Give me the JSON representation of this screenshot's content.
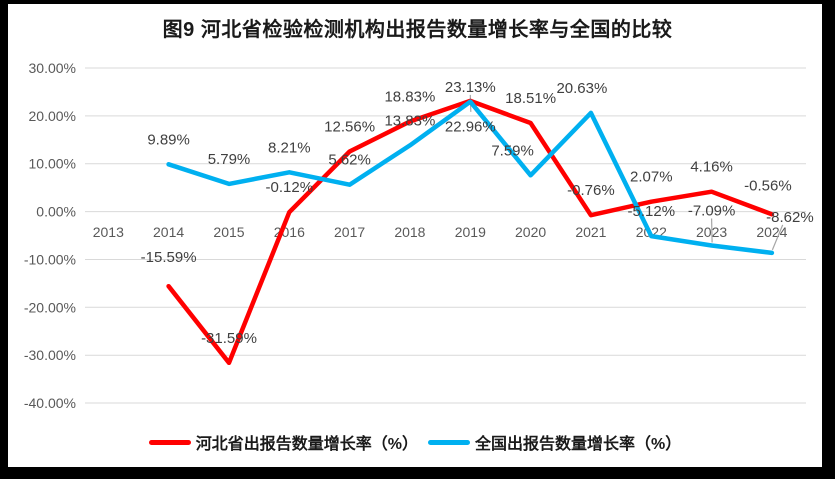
{
  "chart_data": {
    "type": "line",
    "title": "图9 河北省检验检测机构出报告数量增长率与全国的比较",
    "categories": [
      "2013",
      "2014",
      "2015",
      "2016",
      "2017",
      "2018",
      "2019",
      "2020",
      "2021",
      "2022",
      "2023",
      "2024"
    ],
    "series": [
      {
        "name": "河北省出报告数量增长率（%）",
        "color": "#FF0000",
        "values": [
          null,
          -15.59,
          -31.59,
          -0.12,
          12.56,
          18.83,
          23.13,
          18.51,
          -0.76,
          2.07,
          4.16,
          -0.56
        ]
      },
      {
        "name": "全国出报告数量增长率（%）",
        "color": "#00B0F0",
        "values": [
          null,
          9.89,
          5.79,
          8.21,
          5.62,
          13.83,
          22.96,
          7.59,
          20.63,
          -5.12,
          -7.09,
          -8.62
        ]
      }
    ],
    "y_axis": {
      "min": -40,
      "max": 30,
      "ticks": [
        30,
        20,
        10,
        0,
        -10,
        -20,
        -30,
        -40
      ],
      "tick_labels": [
        "30.00%",
        "20.00%",
        "10.00%",
        "0.00%",
        "-10.00%",
        "-20.00%",
        "-30.00%",
        "-40.00%"
      ]
    },
    "grid": true,
    "legend_position": "bottom",
    "data_label_format": "0.00%",
    "colors": {
      "gridline": "#D9D9D9",
      "axis_text": "#595959",
      "data_label_text": "#404040",
      "leader_line": "#A6A6A6",
      "frame": "#000000",
      "background": "#FFFFFF"
    }
  }
}
